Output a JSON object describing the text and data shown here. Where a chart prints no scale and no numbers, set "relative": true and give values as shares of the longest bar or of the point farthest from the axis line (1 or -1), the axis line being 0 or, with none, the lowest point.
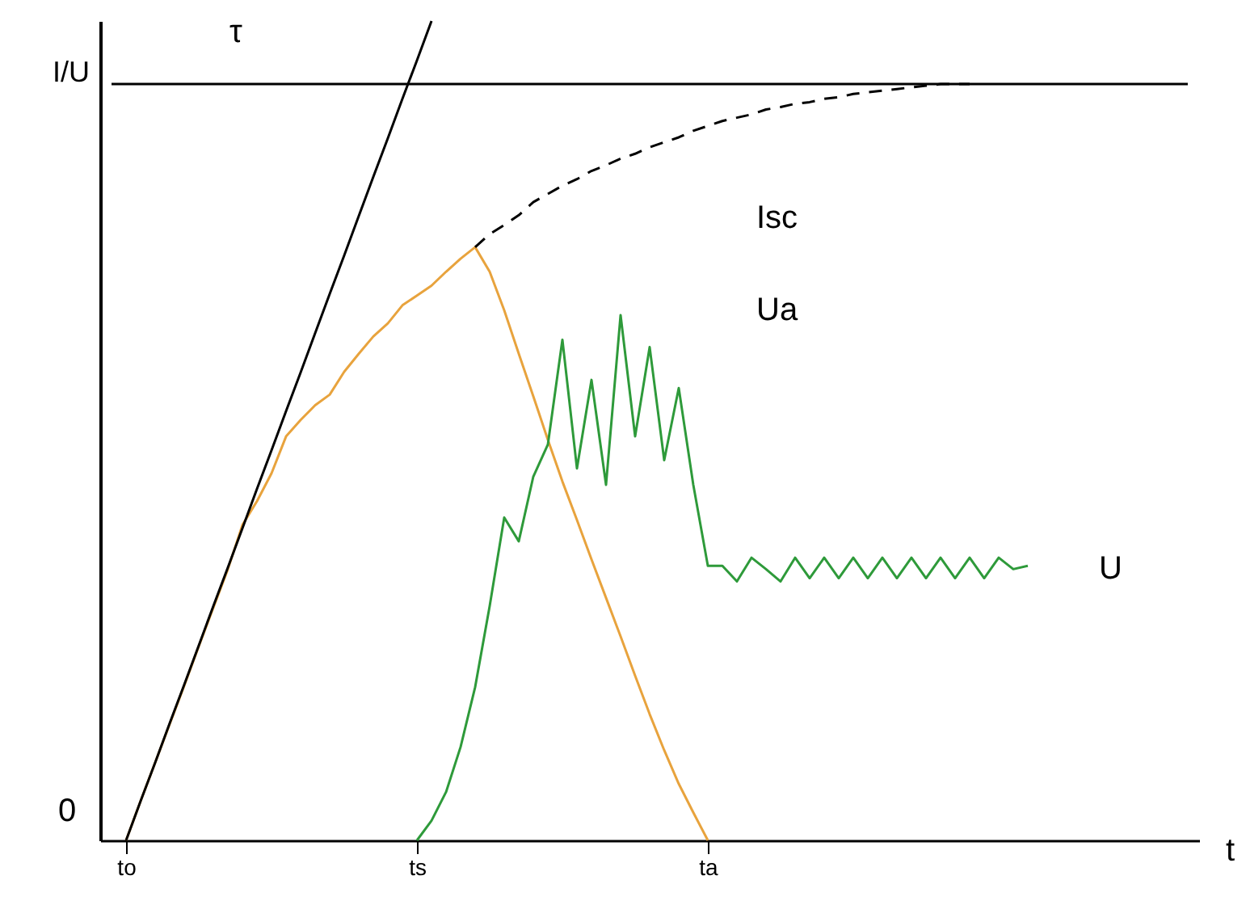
{
  "chart_data": {
    "type": "line",
    "relative": true,
    "xlabel": "t",
    "ylabel": "I/U",
    "categories": [
      null,
      "to",
      null,
      null,
      null,
      null,
      null,
      null,
      null,
      null,
      null,
      null,
      null,
      null,
      null,
      null,
      null,
      null,
      null,
      null,
      null,
      "ts",
      null,
      null,
      null,
      null,
      null,
      null,
      null,
      null,
      null,
      null,
      null,
      null,
      null,
      null,
      null,
      null,
      null,
      null,
      null,
      "ta",
      null,
      null,
      null,
      null,
      null,
      null,
      null,
      null,
      null,
      null,
      null,
      null,
      null,
      null,
      null,
      null,
      null,
      null,
      null,
      null,
      null,
      null,
      null,
      null,
      null,
      null,
      null,
      null,
      null,
      null,
      null,
      null,
      null
    ],
    "series": [
      {
        "color": "#e8a33d",
        "line_style": "solid",
        "values": [
          null,
          0,
          0.048,
          0.095,
          0.142,
          0.189,
          0.237,
          0.284,
          0.331,
          0.385,
          0.414,
          0.448,
          0.493,
          0.513,
          0.531,
          0.544,
          0.572,
          0.594,
          0.615,
          0.631,
          0.653,
          0.665,
          0.677,
          0.694,
          0.71,
          0.724,
          0.694,
          0.647,
          0.594,
          0.542,
          0.489,
          0.438,
          0.391,
          0.343,
          0.296,
          0.249,
          0.201,
          0.154,
          0.11,
          0.069,
          0.034,
          0,
          null,
          null,
          null,
          null,
          null,
          null,
          null,
          null,
          null,
          null,
          null,
          null,
          null,
          null,
          null,
          null,
          null,
          null,
          null,
          null,
          null,
          null,
          null,
          null,
          null,
          null,
          null,
          null,
          null,
          null,
          null,
          null,
          null
        ]
      },
      {
        "color": "#000000",
        "line_style": "dashed",
        "values": [
          null,
          null,
          null,
          null,
          null,
          null,
          null,
          null,
          null,
          null,
          null,
          null,
          null,
          null,
          null,
          null,
          null,
          null,
          null,
          null,
          null,
          null,
          null,
          null,
          null,
          0.724,
          0.74,
          0.751,
          0.763,
          0.779,
          0.789,
          0.799,
          0.807,
          0.817,
          0.824,
          0.832,
          0.838,
          0.846,
          0.852,
          0.858,
          0.866,
          0.872,
          0.878,
          0.882,
          0.886,
          0.892,
          0.895,
          0.899,
          0.901,
          0.905,
          0.907,
          0.911,
          0.913,
          0.915,
          0.917,
          0.919,
          0.921,
          0.923,
          0.923,
          0.923,
          null,
          null,
          null,
          null,
          null,
          null,
          null,
          null,
          null,
          null,
          null,
          null,
          null,
          null,
          null
        ]
      },
      {
        "color": "#000000",
        "line_style": "solid",
        "values": [
          null,
          0,
          0.048,
          0.095,
          0.143,
          0.19,
          0.238,
          0.286,
          0.333,
          0.381,
          0.429,
          0.476,
          0.524,
          0.571,
          0.619,
          0.667,
          0.714,
          0.762,
          0.81,
          0.857,
          0.905,
          0.952,
          1,
          null,
          null,
          null,
          null,
          null,
          null,
          null,
          null,
          null,
          null,
          null,
          null,
          null,
          null,
          null,
          null,
          null,
          null,
          null,
          null,
          null,
          null,
          null,
          null,
          null,
          null,
          null,
          null,
          null,
          null,
          null,
          null,
          null,
          null,
          null,
          null,
          null,
          null,
          null,
          null,
          null,
          null,
          null,
          null,
          null,
          null,
          null,
          null,
          null,
          null,
          null,
          null
        ]
      },
      {
        "color": "#000000",
        "line_style": "solid",
        "values": [
          0.923,
          0.923,
          0.923,
          0.923,
          0.923,
          0.923,
          0.923,
          0.923,
          0.923,
          0.923,
          0.923,
          0.923,
          0.923,
          0.923,
          0.923,
          0.923,
          0.923,
          0.923,
          0.923,
          0.923,
          0.923,
          0.923,
          0.923,
          0.923,
          0.923,
          0.923,
          0.923,
          0.923,
          0.923,
          0.923,
          0.923,
          0.923,
          0.923,
          0.923,
          0.923,
          0.923,
          0.923,
          0.923,
          0.923,
          0.923,
          0.923,
          0.923,
          0.923,
          0.923,
          0.923,
          0.923,
          0.923,
          0.923,
          0.923,
          0.923,
          0.923,
          0.923,
          0.923,
          0.923,
          0.923,
          0.923,
          0.923,
          0.923,
          0.923,
          0.923,
          0.923,
          0.923,
          0.923,
          0.923,
          0.923,
          0.923,
          0.923,
          0.923,
          0.923,
          0.923,
          0.923,
          0.923,
          0.923,
          0.923,
          0.923
        ]
      },
      {
        "color": "#2e9a3a",
        "line_style": "solid",
        "values": [
          null,
          null,
          null,
          null,
          null,
          null,
          null,
          null,
          null,
          null,
          null,
          null,
          null,
          null,
          null,
          null,
          null,
          null,
          null,
          null,
          null,
          0,
          0.024,
          0.059,
          0.114,
          0.187,
          0.286,
          0.394,
          0.365,
          0.444,
          0.483,
          0.611,
          0.454,
          0.562,
          0.434,
          0.641,
          0.493,
          0.602,
          0.464,
          0.552,
          0.434,
          0.335,
          0.335,
          0.316,
          0.345,
          0.331,
          0.316,
          0.345,
          0.32,
          0.345,
          0.32,
          0.345,
          0.32,
          0.345,
          0.32,
          0.345,
          0.32,
          0.345,
          0.32,
          0.345,
          0.32,
          0.345,
          0.331,
          0.335,
          null,
          null,
          null,
          null,
          null,
          null,
          null,
          null,
          null,
          null,
          null
        ]
      }
    ],
    "annotations": [
      "τ",
      "Isc",
      "Ua",
      "U",
      "0"
    ]
  }
}
